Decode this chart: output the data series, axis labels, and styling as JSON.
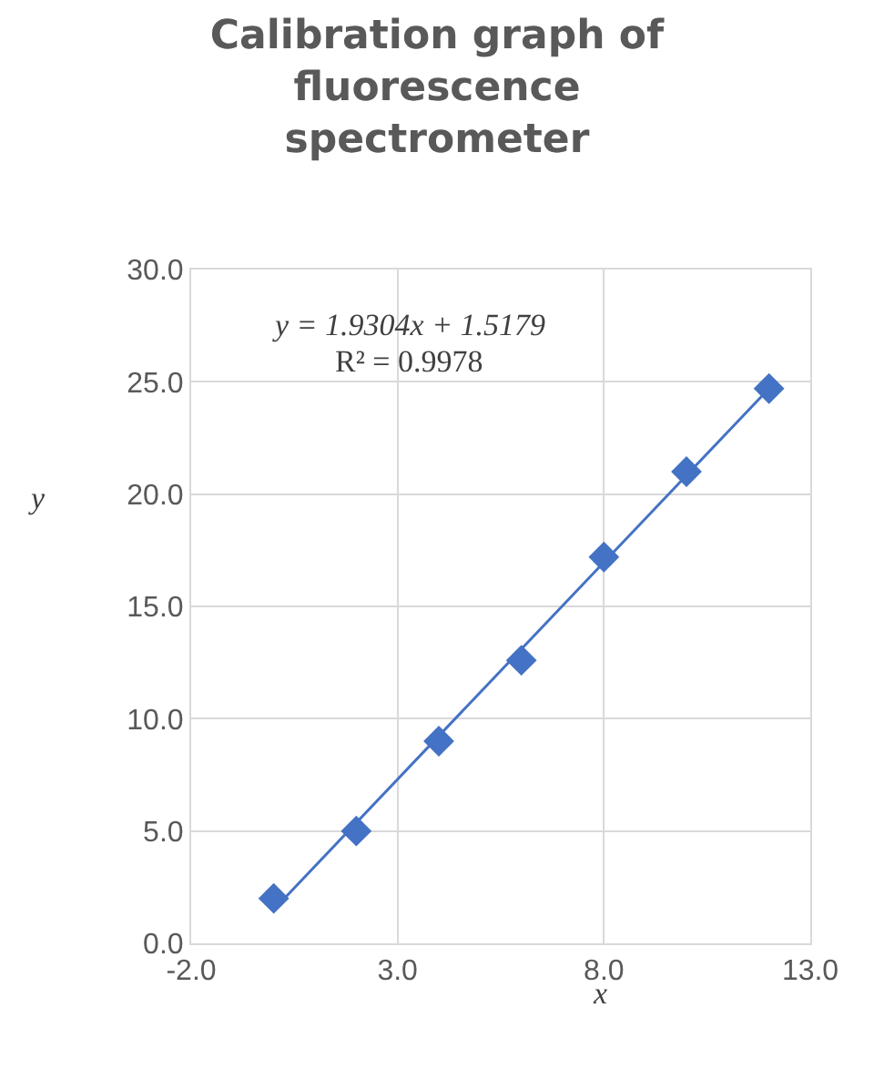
{
  "chart_data": {
    "type": "scatter",
    "title": "Calibration graph of fluorescence spectrometer",
    "xlabel": "x",
    "ylabel": "y",
    "x": [
      0,
      2,
      4,
      6,
      8,
      10,
      12
    ],
    "series": [
      {
        "color": "#4472c4",
        "values": [
          2.0,
          5.0,
          9.0,
          12.6,
          17.2,
          21.0,
          24.7
        ],
        "marker": "diamond"
      },
      {
        "type": "line",
        "color": "#4472c4",
        "x": [
          0,
          12
        ],
        "values": [
          1.5,
          24.7
        ],
        "marker": "none"
      }
    ],
    "xlim": [
      -2,
      13
    ],
    "xticks": [
      {
        "value": -2,
        "label": "-2.0"
      },
      {
        "value": 3,
        "label": "3.0"
      },
      {
        "value": 8,
        "label": "8.0"
      },
      {
        "value": 13,
        "label": "13.0"
      }
    ],
    "ylim": [
      0,
      30
    ],
    "yticks": [
      {
        "value": 0,
        "label": "0.0"
      },
      {
        "value": 5,
        "label": "5.0"
      },
      {
        "value": 10,
        "label": "10.0"
      },
      {
        "value": 15,
        "label": "15.0"
      },
      {
        "value": 20,
        "label": "20.0"
      },
      {
        "value": 25,
        "label": "25.0"
      },
      {
        "value": 30,
        "label": "30.0"
      }
    ],
    "annotations": [
      "y = 1.9304x + 1.5179",
      "R² = 0.9978"
    ],
    "grid": true
  }
}
